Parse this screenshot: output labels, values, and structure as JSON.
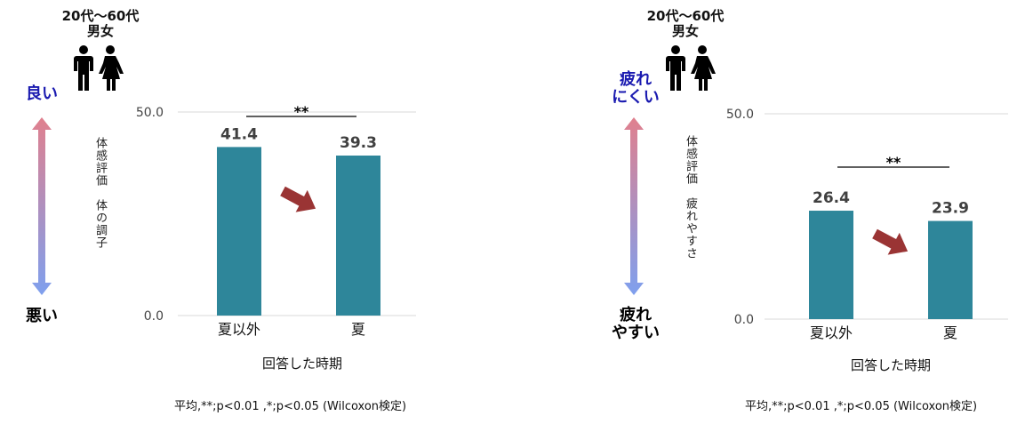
{
  "colors": {
    "bar": "#2e869a",
    "trend_arrow": "#9a3434",
    "scale_top_color": "#e0808e",
    "scale_bottom_color": "#7fa0ee",
    "gridline": "#d9d9d9",
    "good_label": "#1a1ab0"
  },
  "icons": [
    "male-person-icon",
    "female-person-icon",
    "double-arrow-icon",
    "trend-arrow-icon"
  ],
  "panels": [
    {
      "demographic": {
        "line1": "20代～60代",
        "line2": "男女"
      },
      "scale_top": [
        "良い"
      ],
      "scale_bottom": [
        "悪い"
      ],
      "vertical_label": "体感評価　体の調子",
      "xlabel": "回答した時期",
      "footnote": "平均,**;p<0.01 ,*;p<0.05 (Wilcoxon検定)",
      "significance": "**",
      "ytick_labels": [
        "0.0",
        "50.0"
      ]
    },
    {
      "demographic": {
        "line1": "20代～60代",
        "line2": "男女"
      },
      "scale_top": [
        "疲れ",
        "にくい"
      ],
      "scale_bottom": [
        "疲れ",
        "やすい"
      ],
      "vertical_label": "体感評価　疲れやすさ",
      "xlabel": "回答した時期",
      "footnote": "平均,**;p<0.01 ,*;p<0.05 (Wilcoxon検定)",
      "significance": "**",
      "ytick_labels": [
        "0.0",
        "50.0"
      ]
    }
  ],
  "chart_data": [
    {
      "type": "bar",
      "categories": [
        "夏以外",
        "夏"
      ],
      "values": [
        41.4,
        39.3
      ],
      "xlabel": "回答した時期",
      "ylabel": "",
      "ylim": [
        0,
        50
      ],
      "yticks": [
        0,
        50
      ],
      "grid": true,
      "significance": "**"
    },
    {
      "type": "bar",
      "categories": [
        "夏以外",
        "夏"
      ],
      "values": [
        26.4,
        23.9
      ],
      "xlabel": "回答した時期",
      "ylabel": "",
      "ylim": [
        0,
        50
      ],
      "yticks": [
        0,
        50
      ],
      "grid": true,
      "significance": "**"
    }
  ]
}
